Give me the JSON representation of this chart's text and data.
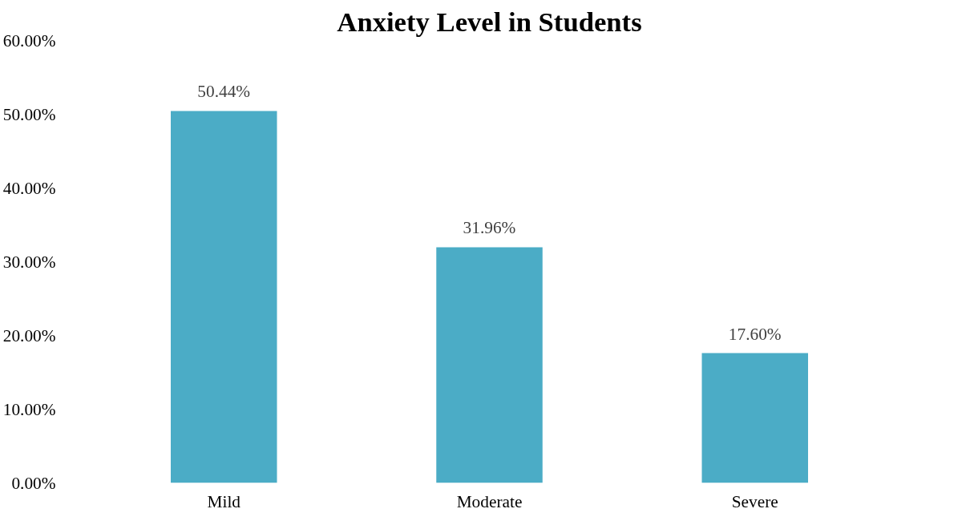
{
  "chart_data": {
    "type": "bar",
    "title": "Anxiety Level in Students",
    "categories": [
      "Mild",
      "Moderate",
      "Severe"
    ],
    "values": [
      50.44,
      31.96,
      17.6
    ],
    "value_labels": [
      "50.44%",
      "31.96%",
      "17.60%"
    ],
    "color": "#4bacc6",
    "ylim": [
      0,
      60
    ],
    "yticks": [
      {
        "value": 0,
        "label": "0.00%"
      },
      {
        "value": 10,
        "label": "10.00%"
      },
      {
        "value": 20,
        "label": "20.00%"
      },
      {
        "value": 30,
        "label": "30.00%"
      },
      {
        "value": 40,
        "label": "40.00%"
      },
      {
        "value": 50,
        "label": "50.00%"
      },
      {
        "value": 60,
        "label": "60.00%"
      }
    ],
    "grid": false
  }
}
